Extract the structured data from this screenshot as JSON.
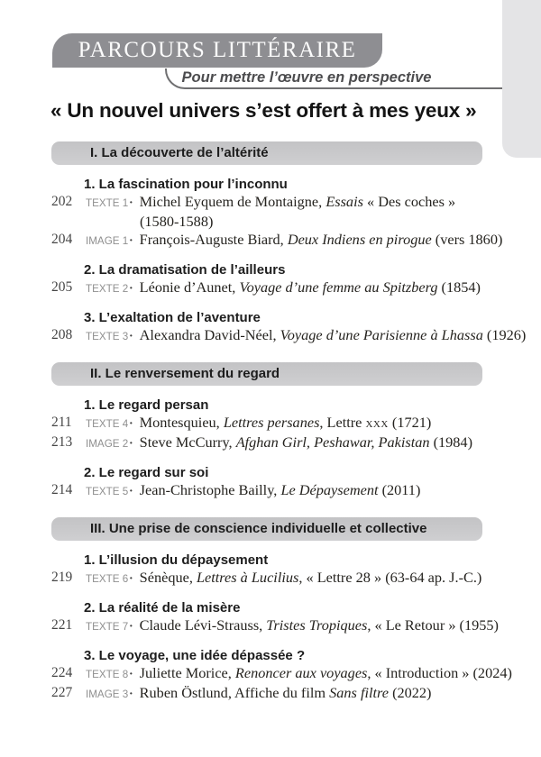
{
  "header": {
    "banner_title": "PARCOURS LITTÉRAIRE",
    "subtitle": "Pour mettre l’œuvre en perspective",
    "main_title": "« Un nouvel univers s’est offert à mes yeux »"
  },
  "separator": "·",
  "colors": {
    "banner_bg": "#8e8e92",
    "banner_text": "#fcfcfc",
    "section_bar_bg": "#c9c9cb",
    "edge_tab_bg": "#e4e4e6",
    "label_gray": "#8f8f8f",
    "heading_dark": "#1d1d1d",
    "body_text": "#25231f",
    "subtitle_gray": "#4c4c4e",
    "rule_gray": "#6f6f71"
  },
  "sections": [
    {
      "title": "I. La découverte de l’altérité",
      "groups": [
        {
          "heading": "1. La fascination pour l’inconnu",
          "entries": [
            {
              "page": "202",
              "label": "TEXTE 1",
              "lines": [
                [
                  {
                    "t": "Michel Eyquem de Montaigne, "
                  },
                  {
                    "t": "Essais",
                    "i": true
                  },
                  {
                    "t": " « Des coches »"
                  }
                ],
                [
                  {
                    "t": "(1580-1588)"
                  }
                ]
              ]
            },
            {
              "page": "204",
              "label": "IMAGE 1",
              "lines": [
                [
                  {
                    "t": "François-Auguste Biard, "
                  },
                  {
                    "t": "Deux Indiens en pirogue",
                    "i": true
                  },
                  {
                    "t": " (vers 1860)"
                  }
                ]
              ]
            }
          ]
        },
        {
          "heading": "2. La dramatisation de l’ailleurs",
          "entries": [
            {
              "page": "205",
              "label": "TEXTE 2",
              "lines": [
                [
                  {
                    "t": "Léonie d’Aunet, "
                  },
                  {
                    "t": "Voyage d’une femme au Spitzberg",
                    "i": true
                  },
                  {
                    "t": " (1854)"
                  }
                ]
              ]
            }
          ]
        },
        {
          "heading": "3. L’exaltation de l’aventure",
          "entries": [
            {
              "page": "208",
              "label": "TEXTE 3",
              "lines": [
                [
                  {
                    "t": "Alexandra David-Néel, "
                  },
                  {
                    "t": "Voyage d’une Parisienne à Lhassa",
                    "i": true
                  },
                  {
                    "t": " (1926)"
                  }
                ]
              ]
            }
          ]
        }
      ]
    },
    {
      "title": "II. Le renversement du regard",
      "groups": [
        {
          "heading": "1. Le regard persan",
          "entries": [
            {
              "page": "211",
              "label": "TEXTE 4",
              "lines": [
                [
                  {
                    "t": "Montesquieu, "
                  },
                  {
                    "t": "Lettres persanes",
                    "i": true
                  },
                  {
                    "t": ", Lettre "
                  },
                  {
                    "t": "xxx",
                    "sc": true
                  },
                  {
                    "t": " (1721)"
                  }
                ]
              ]
            },
            {
              "page": "213",
              "label": "IMAGE 2",
              "lines": [
                [
                  {
                    "t": "Steve McCurry, "
                  },
                  {
                    "t": "Afghan Girl, Peshawar, Pakistan",
                    "i": true
                  },
                  {
                    "t": " (1984)"
                  }
                ]
              ]
            }
          ]
        },
        {
          "heading": "2. Le regard sur soi",
          "entries": [
            {
              "page": "214",
              "label": "TEXTE 5",
              "lines": [
                [
                  {
                    "t": "Jean-Christophe Bailly, "
                  },
                  {
                    "t": "Le Dépaysement",
                    "i": true
                  },
                  {
                    "t": " (2011)"
                  }
                ]
              ]
            }
          ]
        }
      ]
    },
    {
      "title": "III. Une prise de conscience individuelle et collective",
      "groups": [
        {
          "heading": "1. L’illusion du dépaysement",
          "entries": [
            {
              "page": "219",
              "label": "TEXTE 6",
              "lines": [
                [
                  {
                    "t": "Sénèque, "
                  },
                  {
                    "t": "Lettres à Lucilius",
                    "i": true
                  },
                  {
                    "t": ", « Lettre 28 » (63-64 ap. J.-C.)"
                  }
                ]
              ]
            }
          ]
        },
        {
          "heading": "2. La réalité de la misère",
          "entries": [
            {
              "page": "221",
              "label": "TEXTE 7",
              "lines": [
                [
                  {
                    "t": "Claude Lévi-Strauss, "
                  },
                  {
                    "t": "Tristes Tropiques",
                    "i": true
                  },
                  {
                    "t": ", « Le Retour » (1955)"
                  }
                ]
              ]
            }
          ]
        },
        {
          "heading": "3. Le voyage, une idée dépassée ?",
          "entries": [
            {
              "page": "224",
              "label": "TEXTE 8",
              "lines": [
                [
                  {
                    "t": "Juliette Morice, "
                  },
                  {
                    "t": "Renoncer aux voyages",
                    "i": true
                  },
                  {
                    "t": ", « Introduction » (2024)"
                  }
                ]
              ]
            },
            {
              "page": "227",
              "label": "IMAGE 3",
              "lines": [
                [
                  {
                    "t": "Ruben Östlund, Affiche du film "
                  },
                  {
                    "t": "Sans filtre",
                    "i": true
                  },
                  {
                    "t": " (2022)"
                  }
                ]
              ]
            }
          ]
        }
      ]
    }
  ]
}
